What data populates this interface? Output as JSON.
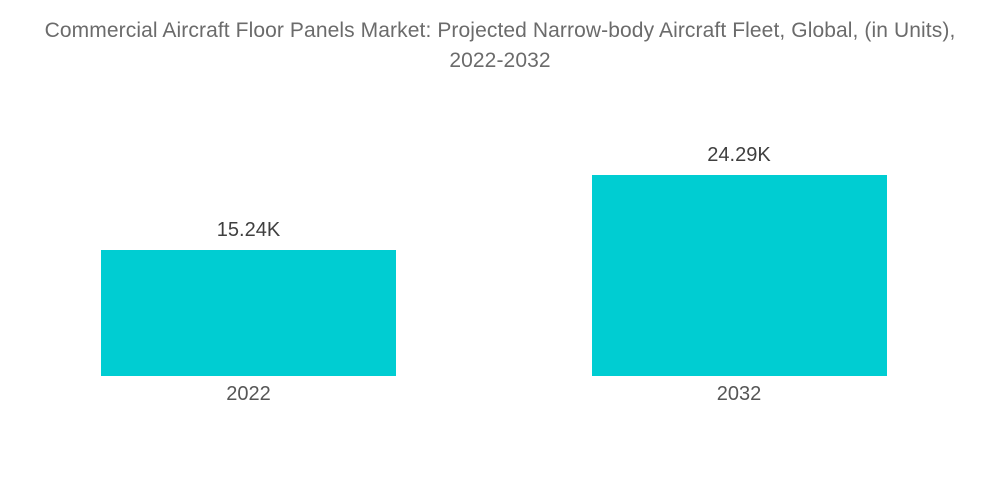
{
  "chart_data": {
    "type": "bar",
    "title": "Commercial Aircraft Floor Panels Market: Projected Narrow-body Aircraft Fleet, Global, (in Units), 2022-2032",
    "categories": [
      "2022",
      "2032"
    ],
    "values": [
      15240,
      24290
    ],
    "value_labels": [
      "15.24K",
      "24.29K"
    ],
    "unit": "Units",
    "xlabel": "",
    "ylabel": "",
    "ylim": [
      0,
      24290
    ],
    "grid": false,
    "legend": false,
    "bar_color": "#00cdd2",
    "title_color": "#6b6b6b",
    "value_label_color": "#3f3f3f",
    "category_label_color": "#565656",
    "background_color": "#ffffff"
  }
}
